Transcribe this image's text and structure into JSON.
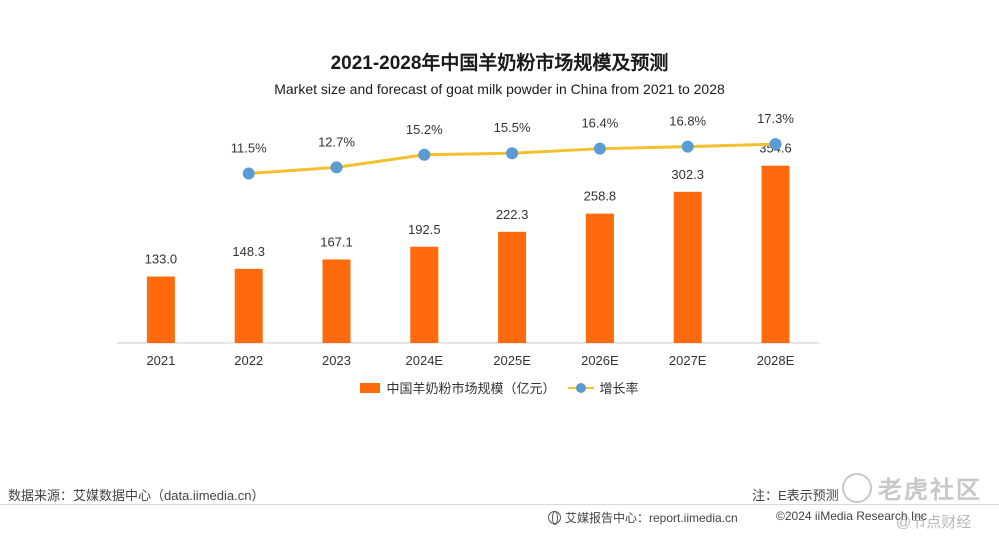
{
  "chart_data": {
    "type": "bar",
    "title": "2021-2028年中国羊奶粉市场规模及预测",
    "subtitle": "Market size and forecast of goat milk powder in China from 2021 to 2028",
    "categories": [
      "2021",
      "2022",
      "2023",
      "2024E",
      "2025E",
      "2026E",
      "2027E",
      "2028E"
    ],
    "series": [
      {
        "name": "中国羊奶粉市场规模（亿元）",
        "type": "bar",
        "values": [
          133.0,
          148.3,
          167.1,
          192.5,
          222.3,
          258.8,
          302.3,
          354.6
        ],
        "labels": [
          "133.0",
          "148.3",
          "167.1",
          "192.5",
          "222.3",
          "258.8",
          "302.3",
          "354.6"
        ]
      },
      {
        "name": "增长率",
        "type": "line",
        "values": [
          null,
          11.5,
          12.7,
          15.2,
          15.5,
          16.4,
          16.8,
          17.3
        ],
        "labels": [
          "",
          "11.5%",
          "12.7%",
          "15.2%",
          "15.5%",
          "16.4%",
          "16.8%",
          "17.3%"
        ]
      }
    ],
    "ylim": [
      0,
      420
    ],
    "y2lim": [
      -22,
      19.5
    ],
    "legend_position": "bottom"
  },
  "colors": {
    "bar": "#ff6a0c",
    "line": "#f2c12e",
    "dot": "#5b9bd5",
    "axis": "#cccccc"
  },
  "footer": {
    "source": "数据来源：艾媒数据中心（data.iimedia.cn）",
    "note": "注：E表示预测",
    "report": "艾媒报告中心：report.iimedia.cn",
    "copyright": "©2024  iiMedia Research Inc",
    "watermark_main": "老虎社区",
    "watermark_sub": "@节点财经"
  }
}
